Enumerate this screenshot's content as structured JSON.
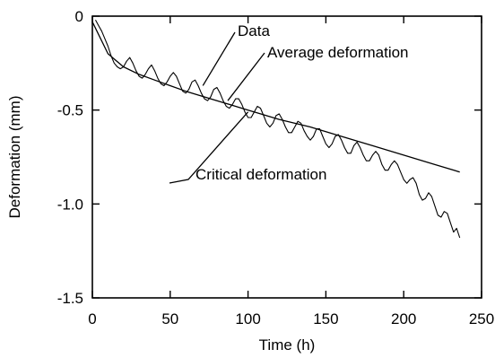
{
  "chart_data": {
    "type": "line",
    "xlabel": "Time (h)",
    "ylabel": "Deformation (mm)",
    "xlim": [
      0,
      250
    ],
    "ylim": [
      -1.5,
      0
    ],
    "x_ticks": [
      0,
      50,
      100,
      150,
      200,
      250
    ],
    "y_ticks": [
      0,
      -0.5,
      -1.0,
      -1.5
    ],
    "x_tick_labels": [
      "0",
      "50",
      "100",
      "150",
      "200",
      "250"
    ],
    "y_tick_labels": [
      "0",
      "-0.5",
      "-1.0",
      "-1.5"
    ],
    "grid": false,
    "line_color": "#000000",
    "series": [
      {
        "key": "data",
        "style": "noisy-line",
        "x": [
          2,
          4,
          6,
          8,
          10,
          12,
          14,
          16,
          18,
          20,
          22,
          24,
          26,
          28,
          30,
          32,
          34,
          36,
          38,
          40,
          42,
          44,
          46,
          48,
          50,
          52,
          54,
          56,
          58,
          60,
          62,
          64,
          66,
          68,
          70,
          72,
          74,
          76,
          78,
          80,
          82,
          84,
          86,
          88,
          90,
          92,
          94,
          96,
          98,
          100,
          102,
          104,
          106,
          108,
          110,
          112,
          114,
          116,
          118,
          120,
          122,
          124,
          126,
          128,
          130,
          132,
          134,
          136,
          138,
          140,
          142,
          144,
          146,
          148,
          150,
          152,
          154,
          156,
          158,
          160,
          162,
          164,
          166,
          168,
          170,
          172,
          174,
          176,
          178,
          180,
          182,
          184,
          186,
          188,
          190,
          192,
          194,
          196,
          198,
          200,
          202,
          204,
          206,
          208,
          210,
          212,
          214,
          216,
          218,
          220,
          222,
          224,
          226,
          228,
          230,
          232,
          234,
          236
        ],
        "y": [
          -0.02,
          -0.05,
          -0.08,
          -0.12,
          -0.16,
          -0.21,
          -0.25,
          -0.27,
          -0.28,
          -0.27,
          -0.24,
          -0.22,
          -0.25,
          -0.29,
          -0.32,
          -0.33,
          -0.31,
          -0.28,
          -0.26,
          -0.29,
          -0.33,
          -0.36,
          -0.37,
          -0.35,
          -0.32,
          -0.3,
          -0.32,
          -0.36,
          -0.4,
          -0.41,
          -0.39,
          -0.35,
          -0.34,
          -0.37,
          -0.41,
          -0.44,
          -0.45,
          -0.43,
          -0.39,
          -0.38,
          -0.41,
          -0.45,
          -0.48,
          -0.49,
          -0.47,
          -0.44,
          -0.44,
          -0.47,
          -0.51,
          -0.54,
          -0.54,
          -0.51,
          -0.48,
          -0.49,
          -0.53,
          -0.57,
          -0.59,
          -0.57,
          -0.53,
          -0.52,
          -0.55,
          -0.59,
          -0.62,
          -0.62,
          -0.59,
          -0.56,
          -0.57,
          -0.61,
          -0.64,
          -0.66,
          -0.64,
          -0.6,
          -0.6,
          -0.64,
          -0.68,
          -0.7,
          -0.68,
          -0.64,
          -0.63,
          -0.66,
          -0.7,
          -0.73,
          -0.73,
          -0.69,
          -0.67,
          -0.7,
          -0.74,
          -0.77,
          -0.77,
          -0.74,
          -0.72,
          -0.74,
          -0.79,
          -0.82,
          -0.82,
          -0.79,
          -0.77,
          -0.79,
          -0.83,
          -0.87,
          -0.89,
          -0.87,
          -0.86,
          -0.89,
          -0.95,
          -0.98,
          -0.97,
          -0.94,
          -0.96,
          -1.01,
          -1.06,
          -1.07,
          -1.04,
          -1.05,
          -1.1,
          -1.15,
          -1.13,
          -1.18
        ]
      },
      {
        "key": "average",
        "style": "smooth-line",
        "x": [
          0,
          10,
          20,
          30,
          40,
          50,
          60,
          80,
          100,
          120,
          140,
          160,
          180,
          200,
          220,
          236
        ],
        "y": [
          -0.03,
          -0.2,
          -0.27,
          -0.31,
          -0.34,
          -0.37,
          -0.4,
          -0.45,
          -0.5,
          -0.55,
          -0.59,
          -0.64,
          -0.69,
          -0.74,
          -0.79,
          -0.83
        ]
      }
    ],
    "annotations": [
      {
        "key": "data",
        "text": "Data",
        "arrow_to": {
          "x": 71,
          "y": -0.37
        }
      },
      {
        "key": "average",
        "text": "Average deformation",
        "arrow_to": {
          "x": 87,
          "y": -0.45
        }
      },
      {
        "key": "critical",
        "text": "Critical deformation",
        "arrow_to": {
          "x": 100,
          "y": -0.51
        }
      }
    ]
  }
}
